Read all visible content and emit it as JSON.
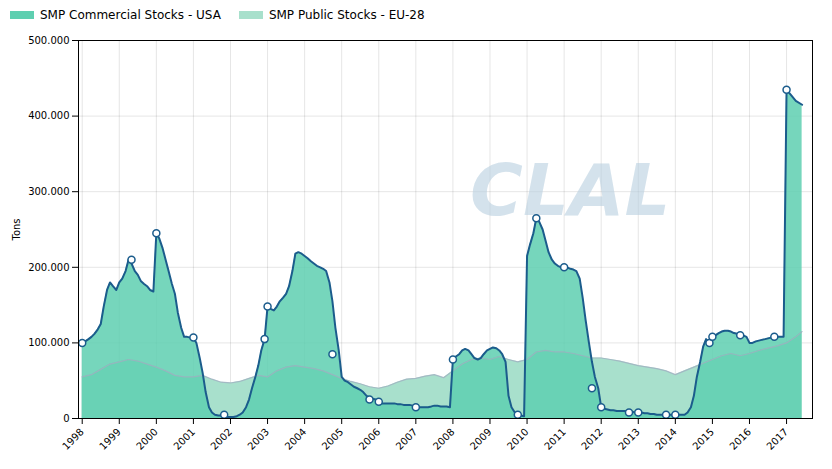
{
  "chart_data": {
    "type": "area",
    "ylabel": "Tons",
    "xlim": [
      1997.9,
      2017.7
    ],
    "xticks": [
      1998,
      1999,
      2000,
      2001,
      2002,
      2003,
      2004,
      2005,
      2006,
      2007,
      2008,
      2009,
      2010,
      2011,
      2012,
      2013,
      2014,
      2015,
      2016,
      2017
    ],
    "ylim": [
      0,
      500000
    ],
    "yticks": [
      0,
      {
        "value": 100000,
        "label": "100.000"
      },
      {
        "value": 200000,
        "label": "200.000"
      },
      {
        "value": 300000,
        "label": "300.000"
      },
      {
        "value": 400000,
        "label": "400.000"
      },
      {
        "value": 500000,
        "label": "500.000"
      }
    ],
    "grid": true,
    "legend": "upper left",
    "annotations": [
      "CLAL"
    ],
    "series": [
      {
        "name": "SMP Commercial Stocks - USA",
        "type": "area",
        "color": "#5ecfb0",
        "x": [
          1998.0,
          1998.08,
          1998.17,
          1998.25,
          1998.33,
          1998.42,
          1998.5,
          1998.58,
          1998.67,
          1998.75,
          1998.83,
          1998.92,
          1999.0,
          1999.08,
          1999.17,
          1999.25,
          1999.33,
          1999.42,
          1999.5,
          1999.58,
          1999.67,
          1999.75,
          1999.83,
          1999.92,
          2000.0,
          2000.08,
          2000.17,
          2000.25,
          2000.33,
          2000.42,
          2000.5,
          2000.58,
          2000.67,
          2000.75,
          2000.83,
          2000.92,
          2001.0,
          2001.08,
          2001.17,
          2001.25,
          2001.33,
          2001.42,
          2001.5,
          2001.58,
          2001.67,
          2001.75,
          2001.83,
          2001.92,
          2002.0,
          2002.08,
          2002.17,
          2002.25,
          2002.33,
          2002.42,
          2002.5,
          2002.58,
          2002.67,
          2002.75,
          2002.83,
          2002.92,
          2003.0,
          2003.08,
          2003.17,
          2003.25,
          2003.33,
          2003.42,
          2003.5,
          2003.58,
          2003.67,
          2003.75,
          2003.83,
          2003.92,
          2004.0,
          2004.08,
          2004.17,
          2004.25,
          2004.33,
          2004.42,
          2004.5,
          2004.58,
          2004.67,
          2004.75,
          2004.83,
          2004.92,
          2005.0,
          2005.08,
          2005.17,
          2005.25,
          2005.33,
          2005.42,
          2005.5,
          2005.58,
          2005.67,
          2005.75,
          2005.83,
          2005.92,
          2006.0,
          2006.08,
          2006.17,
          2006.25,
          2006.33,
          2006.42,
          2006.5,
          2006.58,
          2006.67,
          2006.75,
          2006.83,
          2006.92,
          2007.0,
          2007.08,
          2007.17,
          2007.25,
          2007.33,
          2007.42,
          2007.5,
          2007.58,
          2007.67,
          2007.75,
          2007.83,
          2007.92,
          2008.0,
          2008.08,
          2008.17,
          2008.25,
          2008.33,
          2008.42,
          2008.5,
          2008.58,
          2008.67,
          2008.75,
          2008.83,
          2008.92,
          2009.0,
          2009.08,
          2009.17,
          2009.25,
          2009.33,
          2009.42,
          2009.5,
          2009.58,
          2009.67,
          2009.75,
          2009.83,
          2009.92,
          2010.0,
          2010.08,
          2010.17,
          2010.25,
          2010.33,
          2010.42,
          2010.5,
          2010.58,
          2010.67,
          2010.75,
          2010.83,
          2010.92,
          2011.0,
          2011.08,
          2011.17,
          2011.25,
          2011.33,
          2011.42,
          2011.5,
          2011.58,
          2011.67,
          2011.75,
          2011.83,
          2011.92,
          2012.0,
          2012.08,
          2012.17,
          2012.25,
          2012.33,
          2012.42,
          2012.5,
          2012.58,
          2012.67,
          2012.75,
          2012.83,
          2012.92,
          2013.0,
          2013.08,
          2013.17,
          2013.25,
          2013.33,
          2013.42,
          2013.5,
          2013.58,
          2013.67,
          2013.75,
          2013.83,
          2013.92,
          2014.0,
          2014.08,
          2014.17,
          2014.25,
          2014.33,
          2014.42,
          2014.5,
          2014.58,
          2014.67,
          2014.75,
          2014.83,
          2014.92,
          2015.0,
          2015.08,
          2015.17,
          2015.25,
          2015.33,
          2015.42,
          2015.5,
          2015.58,
          2015.67,
          2015.75,
          2015.83,
          2015.92,
          2016.0,
          2016.08,
          2016.17,
          2016.25,
          2016.33,
          2016.42,
          2016.5,
          2016.58,
          2016.67,
          2016.75,
          2016.83,
          2016.92,
          2017.0,
          2017.25,
          2017.42
        ],
        "values": [
          100000,
          102000,
          105000,
          108000,
          112000,
          118000,
          125000,
          148000,
          170000,
          180000,
          175000,
          170000,
          180000,
          185000,
          195000,
          210000,
          205000,
          195000,
          190000,
          182000,
          178000,
          175000,
          170000,
          168000,
          245000,
          238000,
          225000,
          210000,
          195000,
          178000,
          165000,
          140000,
          120000,
          108000,
          108000,
          107000,
          107000,
          100000,
          80000,
          60000,
          35000,
          15000,
          8000,
          5000,
          4000,
          4000,
          3000,
          2000,
          2000,
          2000,
          3000,
          5000,
          8000,
          15000,
          25000,
          40000,
          55000,
          70000,
          90000,
          105000,
          148000,
          145000,
          143000,
          148000,
          155000,
          160000,
          165000,
          175000,
          195000,
          218000,
          220000,
          218000,
          215000,
          212000,
          208000,
          205000,
          202000,
          200000,
          198000,
          195000,
          180000,
          155000,
          120000,
          90000,
          55000,
          50000,
          48000,
          45000,
          42000,
          40000,
          38000,
          35000,
          30000,
          28000,
          26000,
          25000,
          22000,
          20000,
          20000,
          20000,
          20000,
          20000,
          19000,
          19000,
          18000,
          18000,
          18000,
          17000,
          15000,
          15000,
          15000,
          15000,
          15000,
          16000,
          17000,
          17000,
          16000,
          16000,
          16000,
          15000,
          78000,
          82000,
          85000,
          90000,
          92000,
          90000,
          85000,
          80000,
          78000,
          80000,
          85000,
          90000,
          92000,
          94000,
          93000,
          90000,
          85000,
          75000,
          30000,
          15000,
          8000,
          5000,
          4000,
          3000,
          215000,
          230000,
          245000,
          265000,
          260000,
          250000,
          235000,
          220000,
          210000,
          205000,
          202000,
          200000,
          200000,
          200000,
          198000,
          197000,
          195000,
          185000,
          160000,
          130000,
          100000,
          75000,
          55000,
          40000,
          15000,
          13000,
          12000,
          11000,
          11000,
          10000,
          10000,
          10000,
          10000,
          9000,
          9000,
          8000,
          8000,
          8000,
          7000,
          7000,
          6000,
          6000,
          5000,
          5000,
          5000,
          5000,
          5000,
          5000,
          5000,
          5000,
          5000,
          5000,
          8000,
          15000,
          30000,
          55000,
          75000,
          95000,
          105000,
          100000,
          108000,
          110000,
          113000,
          115000,
          116000,
          116000,
          115000,
          113000,
          112000,
          110000,
          110000,
          108000,
          100000,
          100000,
          102000,
          103000,
          104000,
          105000,
          106000,
          107000,
          107000,
          108000,
          108000,
          108000,
          435000,
          420000,
          415000
        ]
      },
      {
        "name": "SMP Public Stocks - EU-28",
        "type": "area",
        "color": "#a8e0cc",
        "x": [
          1998.0,
          1998.25,
          1998.5,
          1998.75,
          1999.0,
          1999.25,
          1999.5,
          1999.75,
          2000.0,
          2000.25,
          2000.5,
          2000.75,
          2001.0,
          2001.25,
          2001.5,
          2001.75,
          2002.0,
          2002.25,
          2002.5,
          2002.75,
          2003.0,
          2003.25,
          2003.5,
          2003.75,
          2004.0,
          2004.25,
          2004.5,
          2004.75,
          2005.0,
          2005.25,
          2005.5,
          2005.75,
          2006.0,
          2006.25,
          2006.5,
          2006.75,
          2007.0,
          2007.25,
          2007.5,
          2007.75,
          2008.0,
          2008.25,
          2008.5,
          2008.75,
          2009.0,
          2009.25,
          2009.5,
          2009.75,
          2010.0,
          2010.25,
          2010.5,
          2010.75,
          2011.0,
          2011.25,
          2011.5,
          2011.75,
          2012.0,
          2012.25,
          2012.5,
          2012.75,
          2013.0,
          2013.25,
          2013.5,
          2013.75,
          2014.0,
          2014.25,
          2014.5,
          2014.75,
          2015.0,
          2015.25,
          2015.5,
          2015.75,
          2016.0,
          2016.25,
          2016.5,
          2016.75,
          2017.0,
          2017.25,
          2017.42
        ],
        "values": [
          55000,
          58000,
          65000,
          72000,
          75000,
          78000,
          76000,
          72000,
          68000,
          63000,
          57000,
          55000,
          55000,
          57000,
          52000,
          48000,
          47000,
          49000,
          53000,
          57000,
          55000,
          63000,
          68000,
          70000,
          68000,
          66000,
          63000,
          58000,
          53000,
          49000,
          46000,
          42000,
          40000,
          43000,
          48000,
          52000,
          53000,
          56000,
          58000,
          54000,
          63000,
          72000,
          78000,
          80000,
          78000,
          82000,
          78000,
          75000,
          78000,
          88000,
          90000,
          88000,
          88000,
          86000,
          83000,
          80000,
          80000,
          78000,
          76000,
          73000,
          70000,
          68000,
          66000,
          63000,
          58000,
          63000,
          68000,
          73000,
          78000,
          83000,
          86000,
          83000,
          86000,
          90000,
          93000,
          96000,
          100000,
          108000,
          115000
        ]
      },
      {
        "type": "scatter",
        "marker": "circle",
        "color": "#1b5c8c",
        "x": [
          1998.0,
          1999.33,
          2000.0,
          2001.0,
          2001.83,
          2002.92,
          2003.0,
          2004.75,
          2005.75,
          2006.0,
          2007.0,
          2008.0,
          2009.75,
          2010.25,
          2011.0,
          2011.75,
          2012.0,
          2012.75,
          2013.0,
          2013.75,
          2014.0,
          2014.92,
          2015.0,
          2015.75,
          2016.67,
          2017.0
        ],
        "values": [
          100000,
          210000,
          245000,
          107000,
          5000,
          105000,
          148000,
          85000,
          25000,
          22000,
          15000,
          78000,
          5000,
          265000,
          200000,
          40000,
          15000,
          8000,
          8000,
          5000,
          5000,
          100000,
          108000,
          110000,
          108000,
          435000
        ]
      }
    ]
  }
}
